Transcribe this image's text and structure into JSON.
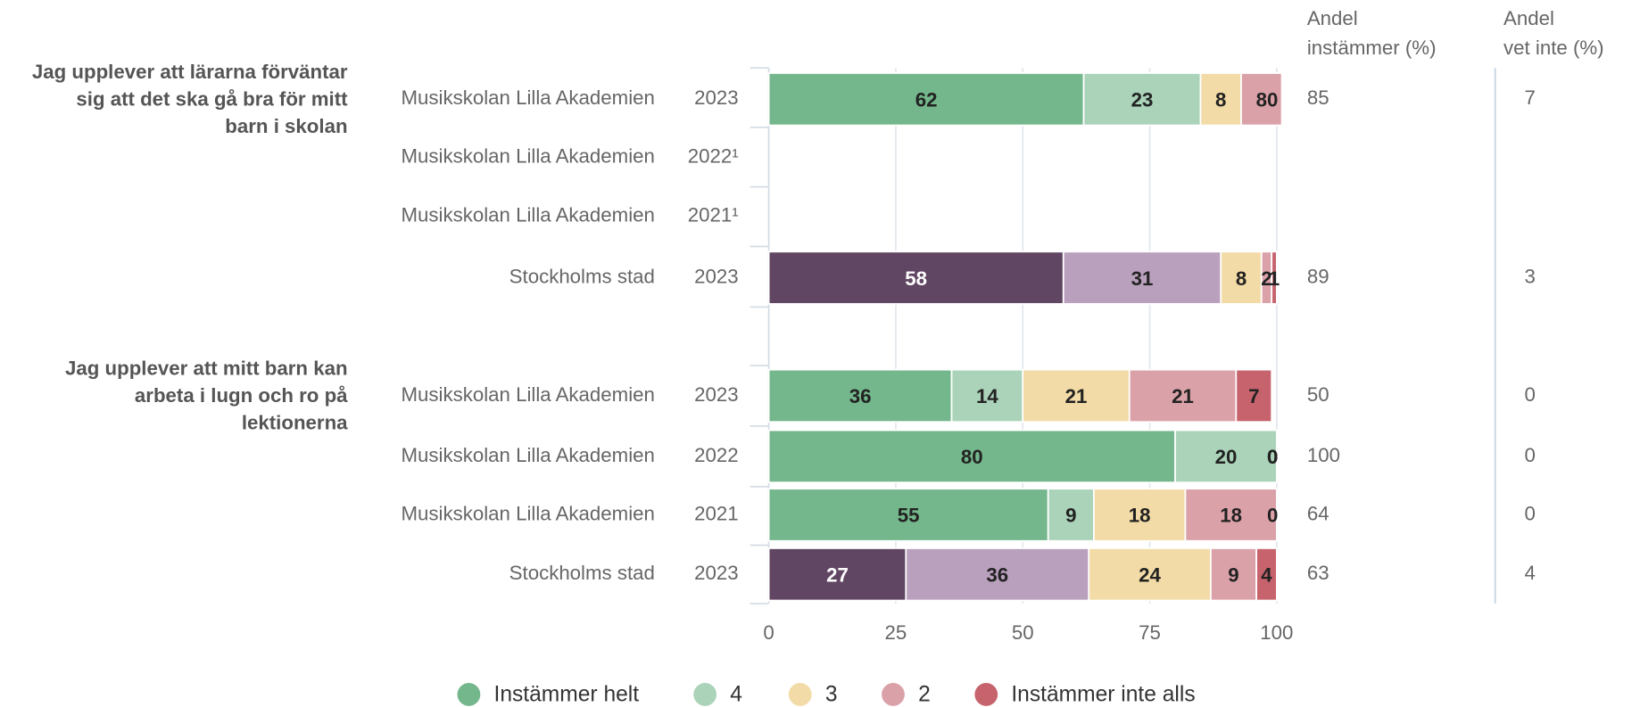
{
  "chart_data": {
    "type": "stacked-bar-h",
    "questions": [
      {
        "lines": [
          "Jag upplever att lärarna förväntar",
          "sig att det ska gå bra för mitt",
          "barn i skolan"
        ]
      },
      {
        "lines": [
          "Jag upplever att mitt barn kan",
          "arbeta i lugn och ro på",
          "lektionerna"
        ]
      }
    ],
    "categories": [
      "Musikskolan Lilla Akademien",
      "Musikskolan Lilla Akademien",
      "Musikskolan Lilla Akademien",
      "Stockholms stad",
      "Musikskolan Lilla Akademien",
      "Musikskolan Lilla Akademien",
      "Musikskolan Lilla Akademien",
      "Stockholms stad"
    ],
    "years": [
      "2023",
      "2022¹",
      "2021¹",
      "2023",
      "2023",
      "2022",
      "2021",
      "2023"
    ],
    "series": [
      {
        "name": "Instämmer helt",
        "color": "#74b78c",
        "colors": [
          "#74b78c",
          null,
          null,
          "#614663",
          "#74b78c",
          "#74b78c",
          "#74b78c",
          "#614663"
        ],
        "values": [
          62,
          null,
          null,
          58,
          36,
          80,
          55,
          27
        ]
      },
      {
        "name": "4",
        "color": "#aad3b9",
        "colors": [
          "#aad3b9",
          null,
          null,
          "#b9a0bd",
          "#aad3b9",
          "#aad3b9",
          "#aad3b9",
          "#b9a0bd"
        ],
        "values": [
          23,
          null,
          null,
          31,
          14,
          20,
          9,
          36
        ]
      },
      {
        "name": "3",
        "color": "#f2dba6",
        "colors": [
          "#f2dba6",
          null,
          null,
          "#f2dba6",
          "#f2dba6",
          "#f2dba6",
          "#f2dba6",
          "#f2dba6"
        ],
        "values": [
          8,
          null,
          null,
          8,
          21,
          0,
          18,
          24
        ]
      },
      {
        "name": "2",
        "color": "#dba1a8",
        "colors": [
          "#dba1a8",
          null,
          null,
          "#dba1a8",
          "#dba1a8",
          "#dba1a8",
          "#dba1a8",
          "#dba1a8"
        ],
        "values": [
          8,
          null,
          null,
          2,
          21,
          0,
          18,
          9
        ]
      },
      {
        "name": "Instämmer inte alls",
        "color": "#c6636d",
        "colors": [
          "#c6636d",
          null,
          null,
          "#c6636d",
          "#c6636d",
          "#c6636d",
          "#c6636d",
          "#c6636d"
        ],
        "values": [
          0,
          null,
          null,
          1,
          7,
          0,
          0,
          4
        ]
      }
    ],
    "columns": [
      {
        "header": [
          "Andel",
          "instämmer (%)"
        ],
        "values": [
          85,
          null,
          null,
          89,
          50,
          100,
          64,
          63
        ]
      },
      {
        "header": [
          "Andel",
          "vet inte (%)"
        ],
        "values": [
          7,
          null,
          null,
          3,
          0,
          0,
          0,
          4
        ]
      }
    ],
    "xlim": [
      0,
      100
    ],
    "xticks": [
      0,
      25,
      50,
      75,
      100
    ],
    "grid": true,
    "legend": "bottom"
  }
}
